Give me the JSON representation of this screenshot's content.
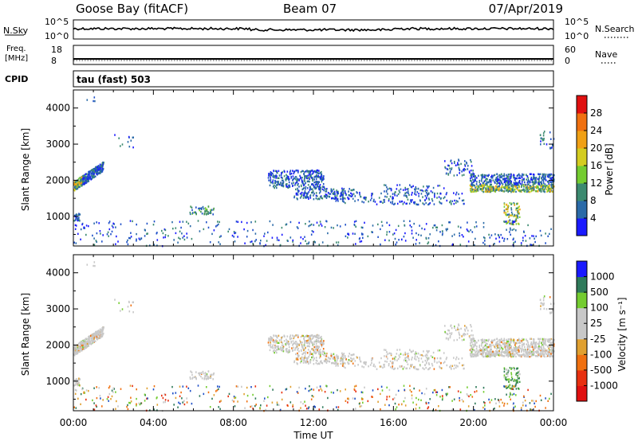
{
  "header": {
    "station": "Goose Bay (fitACF)",
    "beam": "Beam 07",
    "date": "07/Apr/2019"
  },
  "strips": {
    "nsky": {
      "label": "N.Sky",
      "ticks": [
        "10^5",
        "10^0"
      ]
    },
    "nsearch": {
      "label": "N.Search",
      "ticks": [
        "10^5",
        "10^0"
      ]
    },
    "freq": {
      "label_line1": "Freq.",
      "label_line2": "[MHz]",
      "ticks": [
        "18",
        "8"
      ],
      "value_mhz": 8
    },
    "nave": {
      "label": "Nave",
      "ticks": [
        "60",
        "0"
      ]
    },
    "cpid": {
      "label": "CPID",
      "text": "tau (fast) 503"
    }
  },
  "panels": {
    "power": {
      "ylabel": "Slant Range [km]",
      "cbar_label": "Power [dB]"
    },
    "velocity": {
      "ylabel": "Slant Range [km]",
      "cbar_label": "Velocity [m s⁻¹]"
    }
  },
  "xaxis": {
    "label": "Time UT"
  },
  "colors": {
    "power_scale": [
      "#1a1aff",
      "#1f50c8",
      "#2a6aa8",
      "#3c8a70",
      "#4a9a55",
      "#74cc30",
      "#d4cc20",
      "#f0a015",
      "#f07010",
      "#e83010",
      "#e01010"
    ],
    "velocity_scale": [
      "#1a1aff",
      "#2a50b0",
      "#2f7a5a",
      "#3c9a3c",
      "#74cc30",
      "#c8c8c8",
      "#c8c8c8",
      "#e0a030",
      "#f07010",
      "#e83010",
      "#e01010"
    ],
    "ground_scatter": "#c8c8c8"
  },
  "chart_data": [
    {
      "type": "heatmap",
      "title": "Power",
      "xlabel": "Time UT",
      "ylabel": "Slant Range [km]",
      "x_ticks": [
        "00:00",
        "04:00",
        "08:00",
        "12:00",
        "16:00",
        "20:00",
        "00:00"
      ],
      "xlim_hours": [
        0,
        24
      ],
      "ylim_km": [
        180,
        4500
      ],
      "y_ticks": [
        1000,
        2000,
        3000,
        4000
      ],
      "colorbar": {
        "label": "Power [dB]",
        "ticks": [
          4,
          8,
          12,
          16,
          20,
          24,
          28
        ],
        "range": [
          0,
          32
        ]
      },
      "echo_regions": [
        {
          "t_start": 0.0,
          "t_end": 1.5,
          "r_start": 1800,
          "r_end": 2600,
          "level": "medium-high"
        },
        {
          "t_start": 5.8,
          "t_end": 7.0,
          "r_start": 1100,
          "r_end": 1300,
          "level": "medium"
        },
        {
          "t_start": 9.7,
          "t_end": 22.8,
          "r_start": 1300,
          "r_end": 2300,
          "level": "low-medium"
        },
        {
          "t_start": 19.8,
          "t_end": 24.0,
          "r_start": 1700,
          "r_end": 2300,
          "level": "medium-high"
        },
        {
          "t_start": 21.5,
          "t_end": 22.3,
          "r_start": 800,
          "r_end": 1400,
          "level": "high"
        }
      ]
    },
    {
      "type": "heatmap",
      "title": "Velocity",
      "xlabel": "Time UT",
      "ylabel": "Slant Range [km]",
      "x_ticks": [
        "00:00",
        "04:00",
        "08:00",
        "12:00",
        "16:00",
        "20:00",
        "00:00"
      ],
      "xlim_hours": [
        0,
        24
      ],
      "ylim_km": [
        180,
        4500
      ],
      "y_ticks": [
        1000,
        2000,
        3000,
        4000
      ],
      "colorbar": {
        "label": "Velocity [m s⁻¹]",
        "ticks": [
          "1000",
          "500",
          "100",
          "25",
          "-25",
          "-100",
          "-500",
          "-1000"
        ]
      },
      "echo_regions": [
        {
          "t_start": 0.0,
          "t_end": 1.5,
          "r_start": 1800,
          "r_end": 2600,
          "class": "ground scatter"
        },
        {
          "t_start": 9.7,
          "t_end": 22.8,
          "r_start": 1300,
          "r_end": 2300,
          "class": "ground scatter"
        },
        {
          "t_start": 19.8,
          "t_end": 24.0,
          "r_start": 1700,
          "r_end": 2300,
          "class": "ground scatter"
        },
        {
          "t_start": 21.5,
          "t_end": 22.3,
          "r_start": 800,
          "r_end": 1400,
          "class": "positive velocity"
        }
      ]
    }
  ]
}
